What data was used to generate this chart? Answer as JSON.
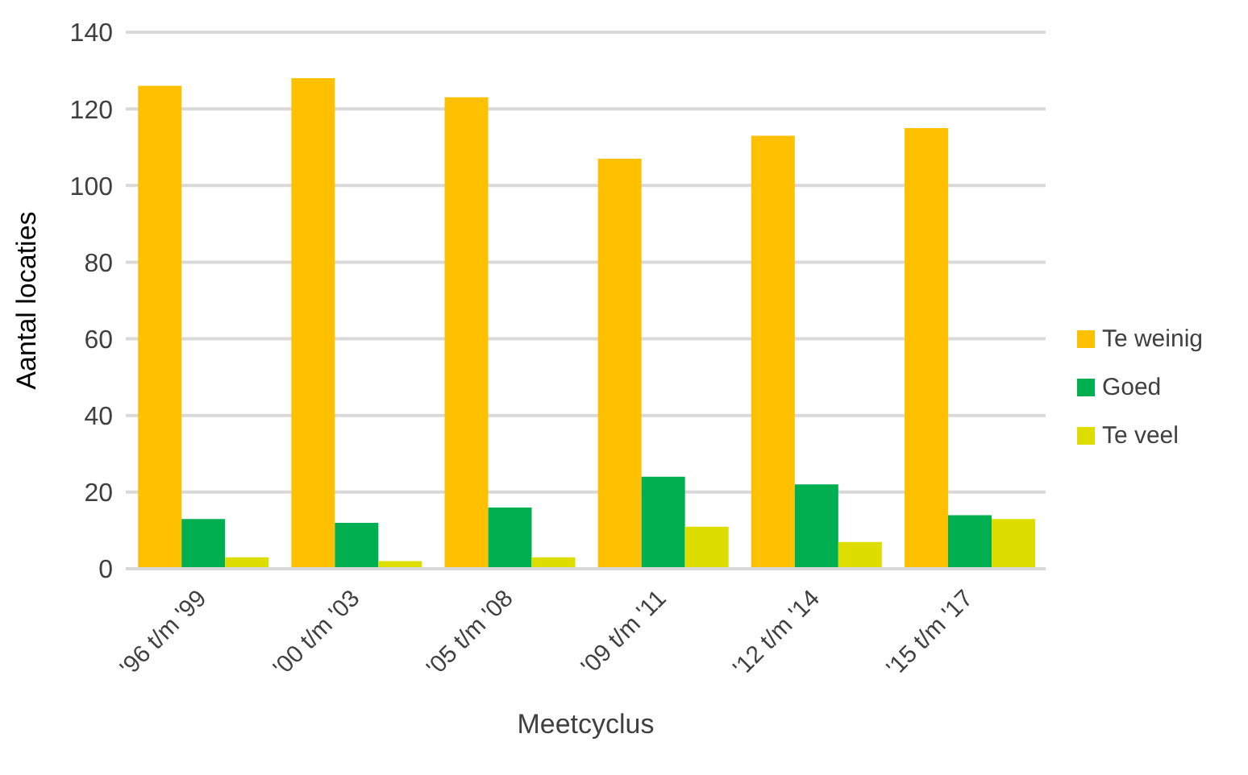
{
  "chart_data": {
    "type": "bar",
    "xlabel": "Meetcyclus",
    "ylabel": "Aantal locaties",
    "categories": [
      "'96 t/m '99",
      "'00 t/m '03",
      "'05 t/m '08",
      "'09 t/m '11",
      "'12 t/m '14",
      "'15 t/m '17"
    ],
    "series": [
      {
        "name": "Te weinig",
        "color": "#ffc000",
        "values": [
          126,
          128,
          123,
          107,
          113,
          115
        ]
      },
      {
        "name": "Goed",
        "color": "#00b050",
        "values": [
          13,
          12,
          16,
          24,
          22,
          14
        ]
      },
      {
        "name": "Te veel",
        "color": "#dddd00",
        "values": [
          3,
          2,
          3,
          11,
          7,
          13
        ]
      }
    ],
    "ylim": [
      0,
      140
    ],
    "yticks": [
      0,
      20,
      40,
      60,
      80,
      100,
      120,
      140
    ],
    "grid": "y",
    "legend": "right"
  }
}
